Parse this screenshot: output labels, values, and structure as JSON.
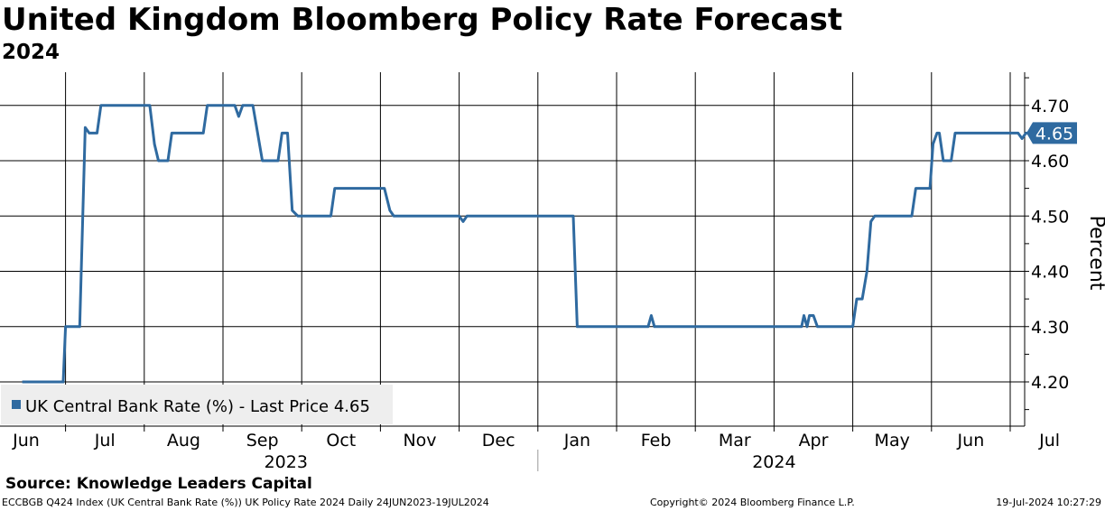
{
  "header": {
    "title": "United Kingdom Bloomberg Policy Rate Forecast",
    "subtitle": "2024"
  },
  "footer": {
    "source": "Source: Knowledge Leaders Capital",
    "ticker_info": "ECCBGB Q424 Index (UK Central Bank Rate (%)) UK Policy Rate 2024  Daily 24JUN2023-19JUL2024",
    "copyright": "Copyright© 2024 Bloomberg Finance L.P.",
    "timestamp": "19-Jul-2024 10:27:29"
  },
  "colors": {
    "series": "#2f6aa0",
    "grid": "#000000",
    "legend_bg": "#eeeeee"
  },
  "chart_data": {
    "type": "line",
    "title": "United Kingdom Bloomberg Policy Rate Forecast",
    "subtitle": "2024",
    "ylabel": "Percent",
    "ylim": [
      4.12,
      4.76
    ],
    "y_ticks": [
      "4.70",
      "4.60",
      "4.50",
      "4.40",
      "4.30",
      "4.20"
    ],
    "y_tick_values": [
      4.7,
      4.6,
      4.5,
      4.4,
      4.3,
      4.2
    ],
    "x_month_labels": [
      "Jun",
      "Jul",
      "Aug",
      "Sep",
      "Oct",
      "Nov",
      "Dec",
      "Jan",
      "Feb",
      "Mar",
      "Apr",
      "May",
      "Jun",
      "Jul"
    ],
    "x_month_index": [
      0,
      1,
      2,
      3,
      4,
      5,
      6,
      7,
      8,
      9,
      10,
      11,
      12,
      13
    ],
    "x_years": [
      {
        "label": "2023",
        "center_month": 3.3
      },
      {
        "label": "2024",
        "center_month": 9.5
      }
    ],
    "year_divider_month": 6.5,
    "grid": true,
    "legend": {
      "label": "UK Central Bank Rate (%) - Last Price 4.65",
      "position": "bottom-left"
    },
    "last_price": "4.65",
    "last_value": 4.65,
    "x_unit": "months since 1 Jun 2023",
    "series": [
      {
        "name": "UK Central Bank Rate (%)",
        "points": [
          [
            -0.05,
            4.2
          ],
          [
            0.47,
            4.2
          ],
          [
            0.5,
            4.3
          ],
          [
            0.68,
            4.3
          ],
          [
            0.75,
            4.66
          ],
          [
            0.8,
            4.65
          ],
          [
            0.9,
            4.65
          ],
          [
            0.95,
            4.7
          ],
          [
            1.57,
            4.7
          ],
          [
            1.63,
            4.63
          ],
          [
            1.68,
            4.6
          ],
          [
            1.8,
            4.6
          ],
          [
            1.85,
            4.65
          ],
          [
            2.25,
            4.65
          ],
          [
            2.3,
            4.7
          ],
          [
            2.65,
            4.7
          ],
          [
            2.7,
            4.68
          ],
          [
            2.75,
            4.7
          ],
          [
            2.88,
            4.7
          ],
          [
            3.0,
            4.6
          ],
          [
            3.2,
            4.6
          ],
          [
            3.25,
            4.65
          ],
          [
            3.32,
            4.65
          ],
          [
            3.38,
            4.51
          ],
          [
            3.45,
            4.5
          ],
          [
            3.87,
            4.5
          ],
          [
            3.92,
            4.55
          ],
          [
            4.55,
            4.55
          ],
          [
            4.62,
            4.51
          ],
          [
            4.67,
            4.5
          ],
          [
            5.5,
            4.5
          ],
          [
            5.55,
            4.49
          ],
          [
            5.6,
            4.5
          ],
          [
            6.95,
            4.5
          ],
          [
            7.0,
            4.3
          ],
          [
            7.9,
            4.3
          ],
          [
            7.94,
            4.32
          ],
          [
            7.98,
            4.3
          ],
          [
            9.85,
            4.3
          ],
          [
            9.88,
            4.32
          ],
          [
            9.92,
            4.3
          ],
          [
            9.95,
            4.32
          ],
          [
            10.0,
            4.32
          ],
          [
            10.05,
            4.3
          ],
          [
            10.5,
            4.3
          ],
          [
            10.55,
            4.35
          ],
          [
            10.62,
            4.35
          ],
          [
            10.68,
            4.4
          ],
          [
            10.73,
            4.49
          ],
          [
            10.78,
            4.5
          ],
          [
            11.25,
            4.5
          ],
          [
            11.3,
            4.55
          ],
          [
            11.48,
            4.55
          ],
          [
            11.52,
            4.63
          ],
          [
            11.57,
            4.65
          ],
          [
            11.6,
            4.65
          ],
          [
            11.65,
            4.6
          ],
          [
            11.75,
            4.6
          ],
          [
            11.8,
            4.65
          ],
          [
            12.6,
            4.65
          ],
          [
            12.65,
            4.64
          ],
          [
            12.7,
            4.65
          ],
          [
            12.85,
            4.65
          ]
        ]
      }
    ]
  }
}
